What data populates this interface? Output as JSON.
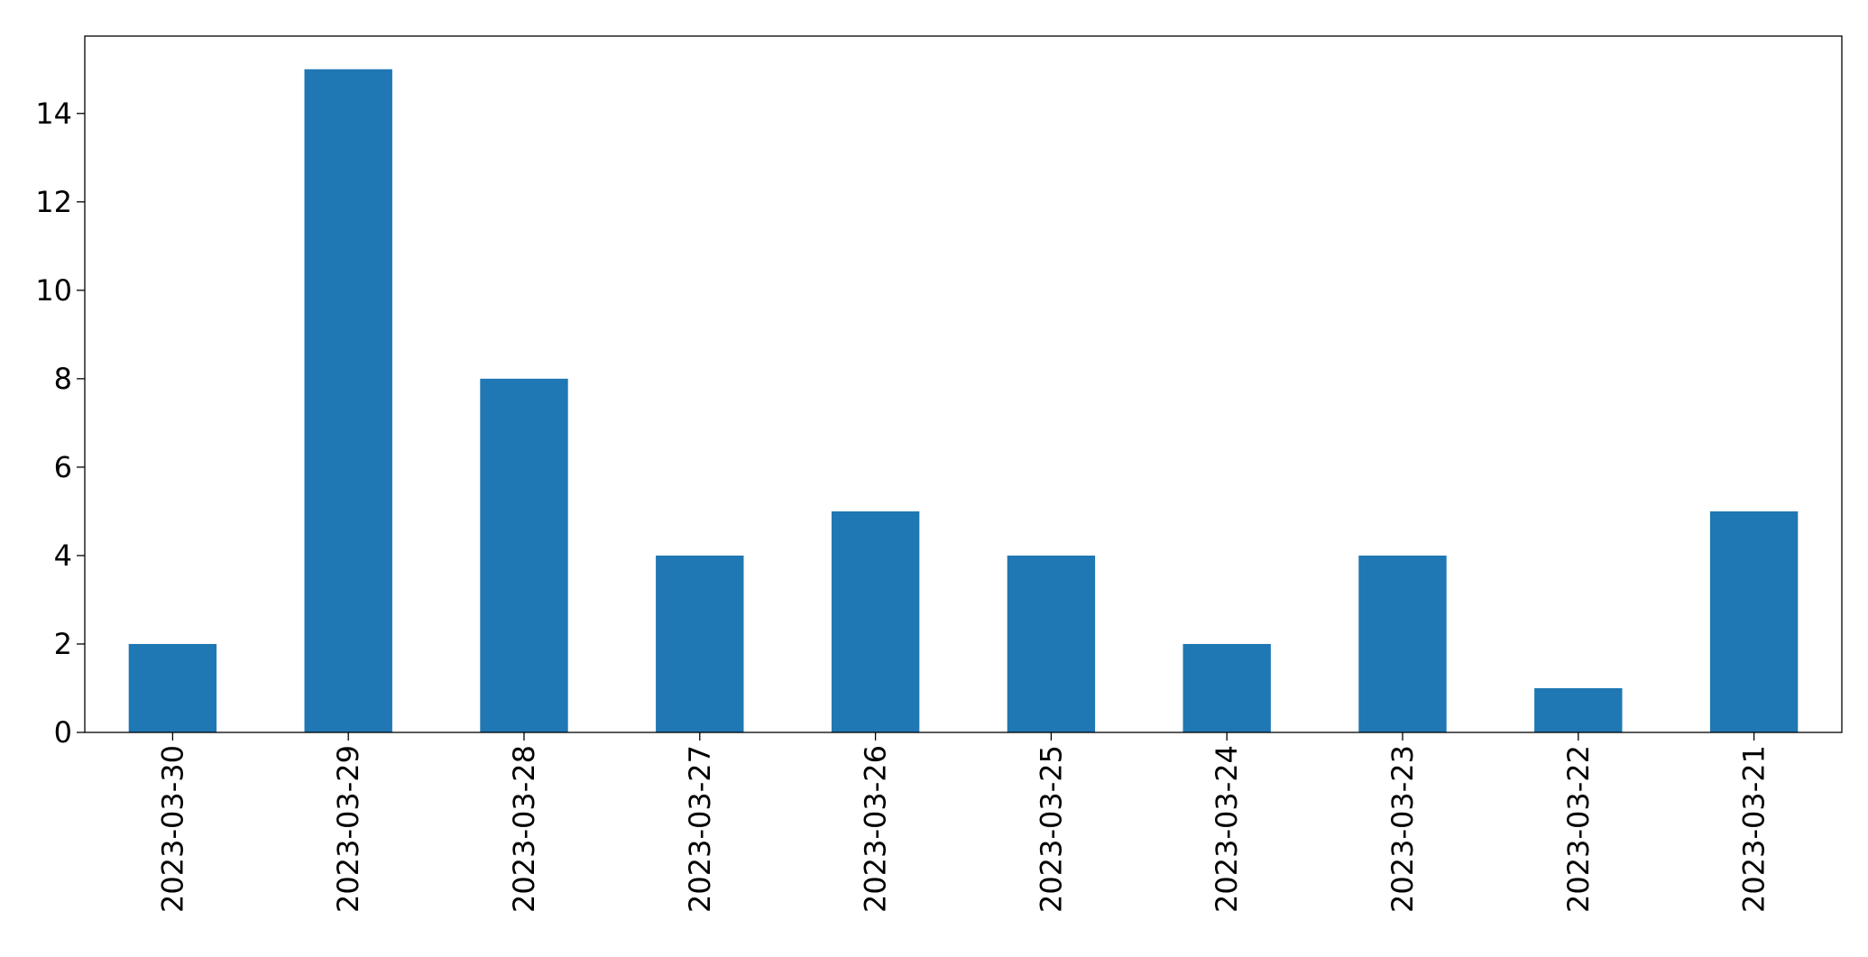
{
  "chart_data": {
    "type": "bar",
    "categories": [
      "2023-03-30",
      "2023-03-29",
      "2023-03-28",
      "2023-03-27",
      "2023-03-26",
      "2023-03-25",
      "2023-03-24",
      "2023-03-23",
      "2023-03-22",
      "2023-03-21"
    ],
    "values": [
      2,
      15,
      8,
      4,
      5,
      4,
      2,
      4,
      1,
      5
    ],
    "color": "#1f77b4",
    "ylim": [
      0,
      15.75
    ],
    "yticks": [
      0,
      2,
      4,
      6,
      8,
      10,
      12,
      14
    ],
    "grid": false
  }
}
